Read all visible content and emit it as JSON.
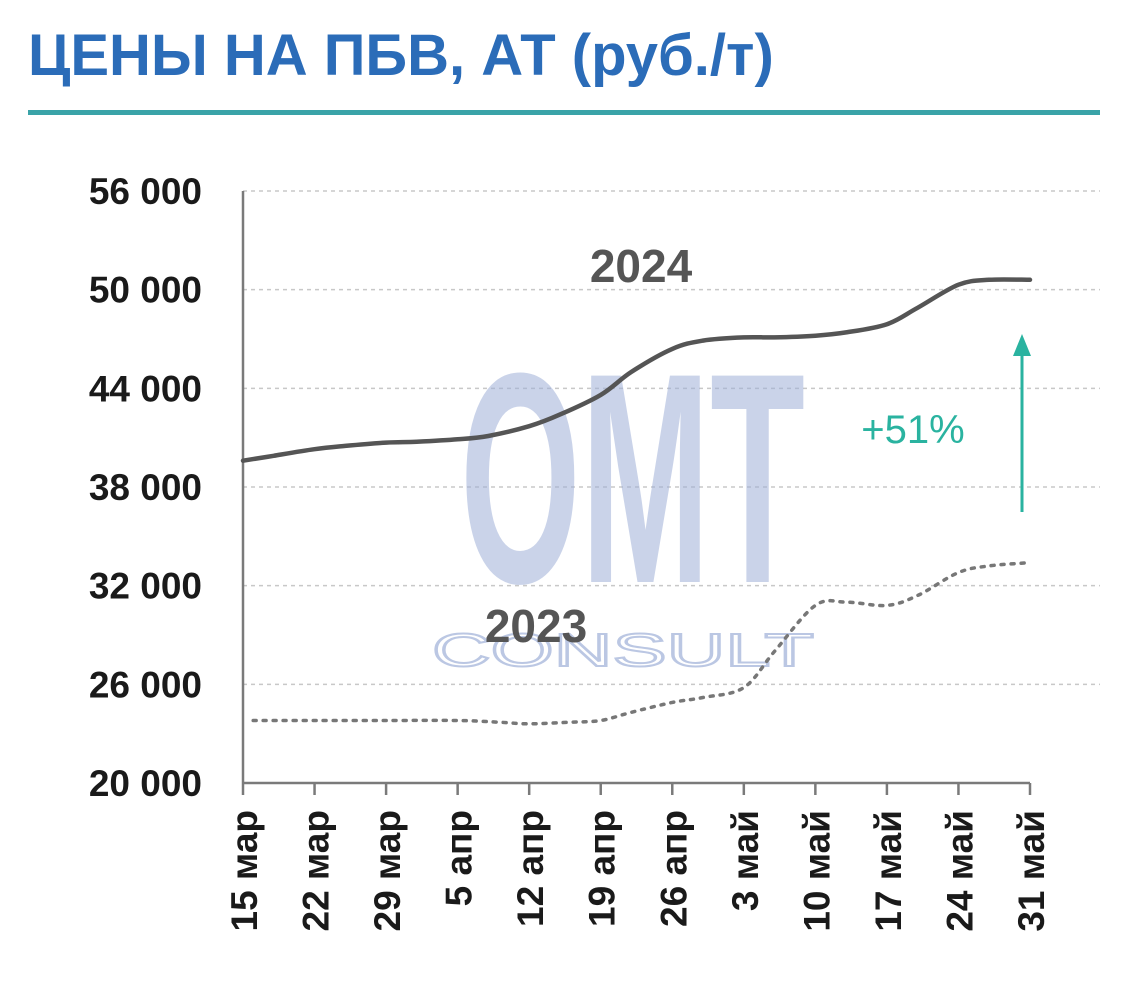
{
  "title": "ЦЕНЫ НА ПБВ, АТ (руб./т)",
  "colors": {
    "title": "#2b6cb8",
    "rule": "#3aa3a8",
    "line2024": "#555555",
    "line2023": "#777777",
    "arrow": "#2ab3a0",
    "grid": "#c8c8c8",
    "watermark": "#9fb0d8",
    "watermark_accent": "#9be3c8"
  },
  "watermark": {
    "logo": "OMT",
    "sub": "CONSULT"
  },
  "chart_data": {
    "type": "line",
    "ylim": [
      20000,
      56000
    ],
    "yticks": [
      20000,
      26000,
      32000,
      38000,
      44000,
      50000,
      56000
    ],
    "ytick_labels": [
      "20 000",
      "26 000",
      "32 000",
      "38 000",
      "44 000",
      "50 000",
      "56 000"
    ],
    "x_labels": [
      "15 мар",
      "22 мар",
      "29 мар",
      "5 апр",
      "12 апр",
      "19 апр",
      "26 апр",
      "3 май",
      "10 май",
      "17 май",
      "24 май",
      "31 май"
    ],
    "x_days": [
      0,
      7,
      14,
      21,
      28,
      35,
      42,
      49,
      56,
      63,
      70,
      77
    ],
    "grid": true,
    "series": [
      {
        "name": "2024",
        "style": "solid",
        "points": [
          [
            0,
            39600
          ],
          [
            3,
            39900
          ],
          [
            7,
            40300
          ],
          [
            10,
            40500
          ],
          [
            14,
            40700
          ],
          [
            17,
            40750
          ],
          [
            21,
            40900
          ],
          [
            24,
            41100
          ],
          [
            28,
            41700
          ],
          [
            31,
            42400
          ],
          [
            35,
            43600
          ],
          [
            38,
            45000
          ],
          [
            42,
            46400
          ],
          [
            45,
            46900
          ],
          [
            49,
            47100
          ],
          [
            52,
            47100
          ],
          [
            56,
            47200
          ],
          [
            59,
            47400
          ],
          [
            63,
            47900
          ],
          [
            66,
            48900
          ],
          [
            70,
            50300
          ],
          [
            73,
            50600
          ],
          [
            77,
            50600
          ]
        ]
      },
      {
        "name": "2023",
        "style": "dotted",
        "points": [
          [
            1,
            23800
          ],
          [
            7,
            23800
          ],
          [
            14,
            23800
          ],
          [
            21,
            23800
          ],
          [
            25,
            23700
          ],
          [
            28,
            23600
          ],
          [
            32,
            23700
          ],
          [
            35,
            23800
          ],
          [
            38,
            24300
          ],
          [
            42,
            24900
          ],
          [
            45,
            25200
          ],
          [
            49,
            25800
          ],
          [
            52,
            28000
          ],
          [
            56,
            30800
          ],
          [
            59,
            31000
          ],
          [
            63,
            30800
          ],
          [
            66,
            31400
          ],
          [
            70,
            32800
          ],
          [
            73,
            33200
          ],
          [
            77,
            33400
          ]
        ]
      }
    ],
    "annotations": [
      {
        "text": "+51%"
      }
    ]
  }
}
